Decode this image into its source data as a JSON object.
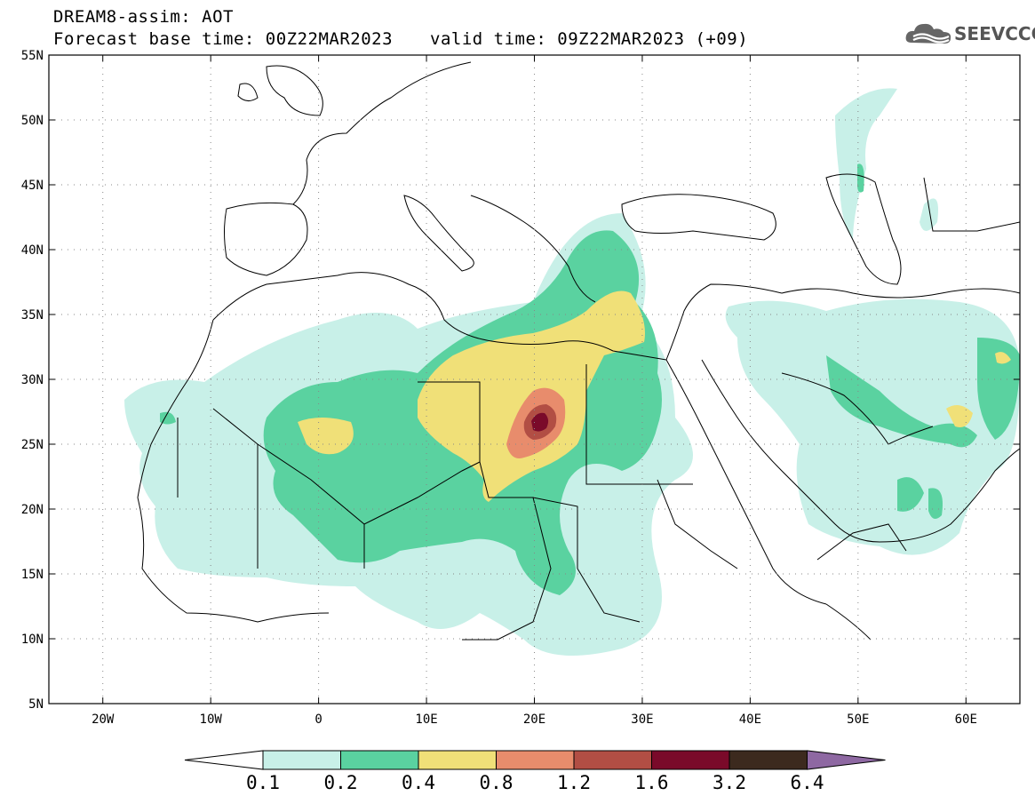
{
  "header": {
    "line1": "DREAM8-assim: AOT",
    "line2": "Forecast base time: 00Z22MAR2023",
    "valid": "valid time: 09Z22MAR2023 (+09)"
  },
  "logo": {
    "text": "SEEVCCC",
    "icon": "cloud-icon"
  },
  "map": {
    "lon_labels": [
      "20W",
      "10W",
      "0",
      "10E",
      "20E",
      "30E",
      "40E",
      "50E",
      "60E"
    ],
    "lat_labels": [
      "55N",
      "50N",
      "45N",
      "40N",
      "35N",
      "30N",
      "25N",
      "20N",
      "15N",
      "10N",
      "5N"
    ],
    "lon_values": [
      -20,
      -10,
      0,
      10,
      20,
      30,
      40,
      50,
      60
    ],
    "lat_values": [
      55,
      50,
      45,
      40,
      35,
      30,
      25,
      20,
      15,
      10,
      5
    ],
    "lon_range": [
      -25,
      65
    ],
    "lat_range": [
      5,
      55
    ]
  },
  "colorbar": {
    "labels": [
      "0.1",
      "0.2",
      "0.4",
      "0.8",
      "1.2",
      "1.6",
      "3.2",
      "6.4"
    ],
    "colors": [
      "#c8f0e8",
      "#5ad2a0",
      "#f0e078",
      "#e88c6c",
      "#b24e44",
      "#7a0a2a",
      "#3c2a1e",
      "#8e68a2"
    ]
  }
}
